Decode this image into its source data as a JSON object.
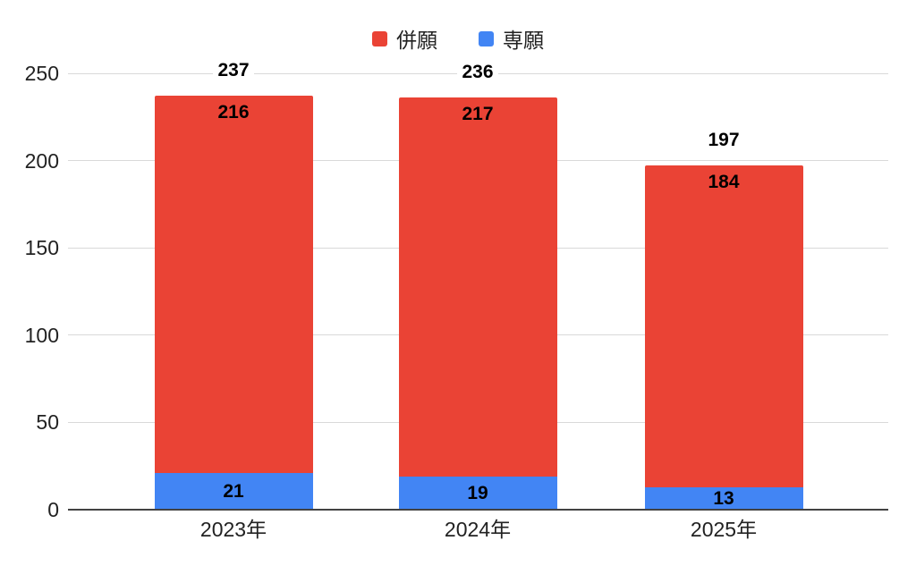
{
  "chart_data": {
    "type": "bar",
    "stacked": true,
    "categories": [
      "2023年",
      "2024年",
      "2025年"
    ],
    "series": [
      {
        "name": "併願",
        "color": "#EA4335",
        "values": [
          216,
          217,
          184
        ]
      },
      {
        "name": "専願",
        "color": "#4285F4",
        "values": [
          21,
          19,
          13
        ]
      }
    ],
    "totals": [
      237,
      236,
      197
    ],
    "y_ticks": [
      0,
      50,
      100,
      150,
      200,
      250
    ],
    "ylim": [
      0,
      250
    ],
    "grid": true,
    "legend_position": "top",
    "colors": {
      "grid": "#d9d9d9",
      "axis": "#424242",
      "annotation": "#000000"
    }
  }
}
